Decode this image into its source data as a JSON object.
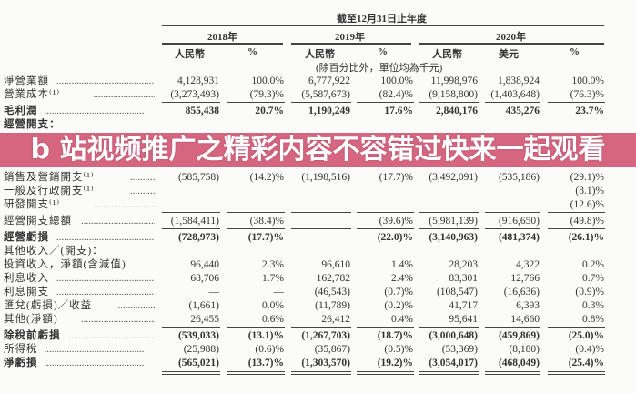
{
  "header": {
    "period": "截至12月31日止年度",
    "years": [
      "2018年",
      "2019年",
      "2020年"
    ],
    "subheaders": [
      "人民幣",
      "%",
      "人民幣",
      "%",
      "人民幣",
      "美元",
      "%"
    ],
    "unit_note": "(除百分比外，單位均為千元)"
  },
  "rows": [
    {
      "label": "淨營業額",
      "values": [
        "4,128,931",
        "100.0%",
        "6,777,922",
        "100.0%",
        "11,998,976",
        "1,838,924",
        "100.0%"
      ]
    },
    {
      "label": "營業成本⁽¹⁾",
      "values": [
        "(3,273,493)",
        "(79.3)%",
        "(5,587,673)",
        "(82.4)%",
        "(9,158,800)",
        "(1,403,648)",
        "(76.3)%"
      ]
    },
    {
      "label": "毛利潤",
      "bold": true,
      "values": [
        "855,438",
        "20.7%",
        "1,190,249",
        "17.6%",
        "2,840,176",
        "435,276",
        "23.7%"
      ]
    },
    {
      "label": "經營開支：",
      "bold": true,
      "values": []
    },
    {
      "label": "銷售及營銷開支⁽¹⁾",
      "values": [
        "(585,758)",
        "(14.2)%",
        "(1,198,516)",
        "(17.7)%",
        "(3,492,091)",
        "(535,186)",
        "(29.1)%"
      ]
    },
    {
      "label": "一般及行政開支⁽¹⁾",
      "values": [
        "",
        "",
        "",
        "",
        "",
        "",
        "(8.1)%"
      ]
    },
    {
      "label": "研發開支⁽¹⁾",
      "values": [
        "",
        "",
        "",
        "",
        "",
        "",
        "(12.6)%"
      ]
    },
    {
      "label": "經營開支總額",
      "values": [
        "(1,584,411)",
        "(38.4)%",
        "",
        "(39.6)%",
        "(5,981,139)",
        "(916,650)",
        "(49.8)%"
      ]
    },
    {
      "label": "經營虧損",
      "bold": true,
      "values": [
        "(728,973)",
        "(17.7)%",
        "",
        "(22.0)%",
        "(3,140,963)",
        "(481,374)",
        "(26.1)%"
      ]
    },
    {
      "label": "其他收入／(開支)：",
      "values": []
    },
    {
      "label": "投資收入，淨額(含減值)",
      "values": [
        "96,440",
        "2.3%",
        "96,610",
        "1.4%",
        "28,203",
        "4,322",
        "0.2%"
      ]
    },
    {
      "label": "利息收入",
      "values": [
        "68,706",
        "1.7%",
        "162,782",
        "2.4%",
        "83,301",
        "12,766",
        "0.7%"
      ]
    },
    {
      "label": "利息開支",
      "values": [
        "—",
        "—",
        "(46,543)",
        "(0.7)%",
        "(108,547)",
        "(16,636)",
        "(0.9)%"
      ]
    },
    {
      "label": "匯兌(虧損)／收益",
      "values": [
        "(1,661)",
        "0.0%",
        "(11,789)",
        "(0.2)%",
        "41,717",
        "6,393",
        "0.3%"
      ]
    },
    {
      "label": "其他(淨額)",
      "values": [
        "26,455",
        "0.6%",
        "26,412",
        "0.4%",
        "95,641",
        "14,660",
        "0.8%"
      ]
    },
    {
      "label": "除稅前虧損",
      "bold": true,
      "values": [
        "(539,033)",
        "(13.1)%",
        "(1,267,703)",
        "(18.7)%",
        "(3,000,648)",
        "(459,869)",
        "(25.0)%"
      ]
    },
    {
      "label": "所得稅",
      "values": [
        "(25,988)",
        "(0.6)%",
        "(35,867)",
        "(0.5)%",
        "(53,369)",
        "(8,180)",
        "(0.4)%"
      ]
    },
    {
      "label": "淨虧損",
      "bold": true,
      "values": [
        "(565,021)",
        "(13.7)%",
        "(1,303,570)",
        "(19.2)%",
        "(3,054,017)",
        "(468,049)",
        "(25.4)%"
      ]
    }
  ],
  "banner": {
    "line1": "b 站视频推广之精彩内容不容错过快来",
    "line2": "一起观看",
    "color": "#d0506e"
  }
}
